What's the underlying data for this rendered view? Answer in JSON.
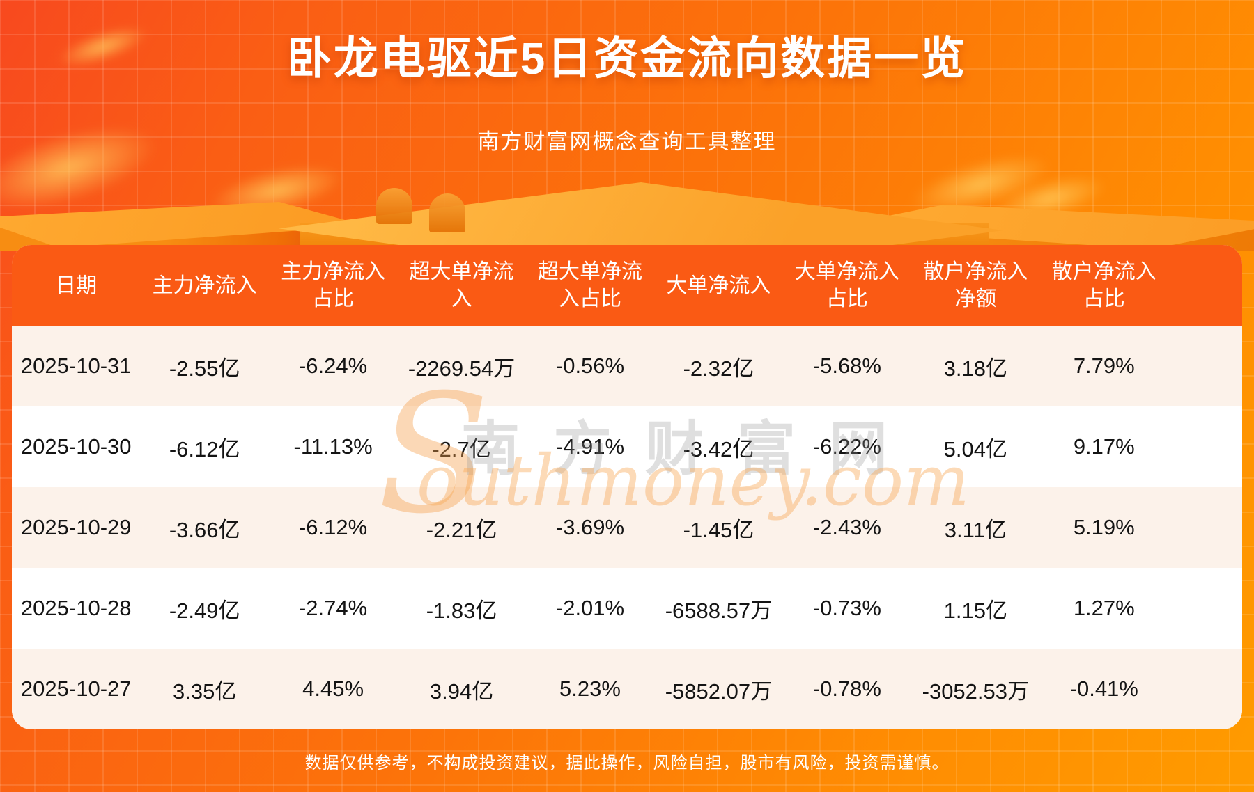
{
  "page": {
    "title": "卧龙电驱近5日资金流向数据一览",
    "subtitle": "南方财富网概念查询工具整理",
    "disclaimer": "数据仅供参考，不构成投资建议，据此操作，风险自担，股市有风险，投资需谨慎。"
  },
  "watermark": {
    "s": "S",
    "cn": "南方财富网",
    "en": "outhmoney.com"
  },
  "colors": {
    "header_bg": "#fa5a14",
    "row_alt_bg": "#fcf2ea",
    "row_bg": "#ffffff",
    "bg_gradient_start": "#f8491f",
    "bg_gradient_end": "#ff9b00",
    "text_on_orange": "#ffffff",
    "cell_text": "#141414"
  },
  "table": {
    "headers": [
      "日期",
      "主力净流入",
      "主力净流入\n占比",
      "超大单净流\n入",
      "超大单净流\n入占比",
      "大单净流入",
      "大单净流入\n占比",
      "散户净流入\n净额",
      "散户净流入\n占比"
    ],
    "rows": [
      [
        "2025-10-31",
        "-2.55亿",
        "-6.24%",
        "-2269.54万",
        "-0.56%",
        "-2.32亿",
        "-5.68%",
        "3.18亿",
        "7.79%"
      ],
      [
        "2025-10-30",
        "-6.12亿",
        "-11.13%",
        "-2.7亿",
        "-4.91%",
        "-3.42亿",
        "-6.22%",
        "5.04亿",
        "9.17%"
      ],
      [
        "2025-10-29",
        "-3.66亿",
        "-6.12%",
        "-2.21亿",
        "-3.69%",
        "-1.45亿",
        "-2.43%",
        "3.11亿",
        "5.19%"
      ],
      [
        "2025-10-28",
        "-2.49亿",
        "-2.74%",
        "-1.83亿",
        "-2.01%",
        "-6588.57万",
        "-0.73%",
        "1.15亿",
        "1.27%"
      ],
      [
        "2025-10-27",
        "3.35亿",
        "4.45%",
        "3.94亿",
        "5.23%",
        "-5852.07万",
        "-0.78%",
        "-3052.53万",
        "-0.41%"
      ]
    ]
  },
  "chart_data": {
    "type": "table",
    "title": "卧龙电驱近5日资金流向数据一览",
    "subtitle": "南方财富网概念查询工具整理",
    "columns": [
      "日期",
      "主力净流入",
      "主力净流入占比",
      "超大单净流入",
      "超大单净流入占比",
      "大单净流入",
      "大单净流入占比",
      "散户净流入净额",
      "散户净流入占比"
    ],
    "rows": [
      [
        "2025-10-31",
        "-2.55亿",
        "-6.24%",
        "-2269.54万",
        "-0.56%",
        "-2.32亿",
        "-5.68%",
        "3.18亿",
        "7.79%"
      ],
      [
        "2025-10-30",
        "-6.12亿",
        "-11.13%",
        "-2.7亿",
        "-4.91%",
        "-3.42亿",
        "-6.22%",
        "5.04亿",
        "9.17%"
      ],
      [
        "2025-10-29",
        "-3.66亿",
        "-6.12%",
        "-2.21亿",
        "-3.69%",
        "-1.45亿",
        "-2.43%",
        "3.11亿",
        "5.19%"
      ],
      [
        "2025-10-28",
        "-2.49亿",
        "-2.74%",
        "-1.83亿",
        "-2.01%",
        "-6588.57万",
        "-0.73%",
        "1.15亿",
        "1.27%"
      ],
      [
        "2025-10-27",
        "3.35亿",
        "4.45%",
        "3.94亿",
        "5.23%",
        "-5852.07万",
        "-0.78%",
        "-3052.53万",
        "-0.41%"
      ]
    ],
    "footnote": "数据仅供参考，不构成投资建议，据此操作，风险自担，股市有风险，投资需谨慎。"
  }
}
